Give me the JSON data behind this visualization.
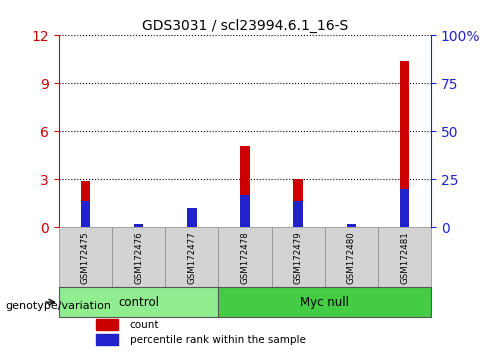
{
  "title": "GDS3031 / scl23994.6.1_16-S",
  "samples": [
    "GSM172475",
    "GSM172476",
    "GSM172477",
    "GSM172478",
    "GSM172479",
    "GSM172480",
    "GSM172481"
  ],
  "count_values": [
    2.9,
    0.03,
    0.65,
    5.1,
    3.0,
    0.03,
    10.4
  ],
  "percentile_values": [
    14.0,
    2.0,
    10.0,
    17.0,
    14.0,
    2.0,
    20.0
  ],
  "left_ylim": [
    0,
    12
  ],
  "left_yticks": [
    0,
    3,
    6,
    9,
    12
  ],
  "right_ylim": [
    0,
    100
  ],
  "right_yticks": [
    0,
    25,
    50,
    75,
    100
  ],
  "right_yticklabels": [
    "0",
    "25",
    "50",
    "75",
    "100%"
  ],
  "count_color": "#cc0000",
  "percentile_color": "#2222cc",
  "bar_width": 0.18,
  "groups": [
    {
      "label": "control",
      "start": 0,
      "end": 2,
      "color": "#90ee90"
    },
    {
      "label": "Myc null",
      "start": 3,
      "end": 6,
      "color": "#44cc44"
    }
  ],
  "group_label": "genotype/variation",
  "legend_count": "count",
  "legend_percentile": "percentile rank within the sample",
  "tick_bg_color": "#d3d3d3",
  "left_tick_color": "#cc0000",
  "right_tick_color": "#2222cc"
}
